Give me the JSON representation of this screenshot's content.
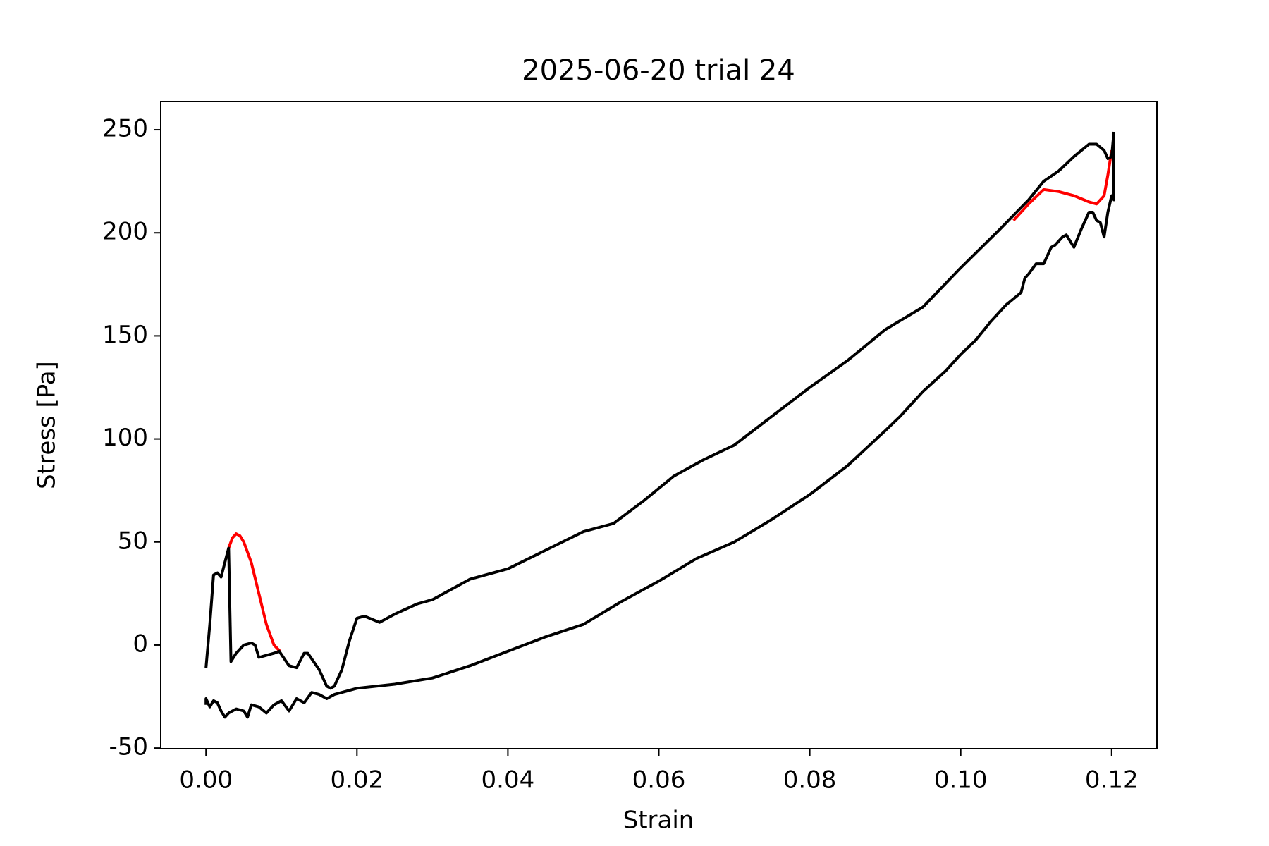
{
  "chart_data": {
    "type": "line",
    "title": "2025-06-20 trial 24",
    "x_label": "Strain",
    "y_label": "Stress [Pa]",
    "xlim": [
      -0.006,
      0.126
    ],
    "ylim": [
      -50.3,
      263.7
    ],
    "xticks": [
      {
        "value": 0,
        "label": "0.00"
      },
      0.02,
      0.04,
      0.06,
      0.08,
      {
        "value": 0.1,
        "label": "0.10"
      },
      0.12
    ],
    "yticks": [
      -50,
      0,
      50,
      100,
      150,
      200,
      250
    ],
    "series": [
      {
        "color": "#ff0000",
        "x": [
          0.003,
          0.0035,
          0.004,
          0.0045,
          0.005,
          0.006,
          0.007,
          0.008,
          0.009,
          0.0098,
          null,
          0.107,
          0.109,
          0.111,
          0.113,
          0.115,
          0.117,
          0.118,
          0.119,
          0.1195,
          0.12
        ],
        "values": [
          47,
          52,
          54,
          53,
          50,
          40,
          25,
          10,
          0,
          -3,
          null,
          206,
          214,
          221,
          220,
          218,
          215,
          214,
          218,
          228,
          240
        ]
      },
      {
        "color": "#000000",
        "x": [
          0,
          0.0005,
          0.001,
          0.0015,
          0.002,
          0.003,
          0.0033,
          0.004,
          0.005,
          0.006,
          0.0065,
          0.007,
          0.008,
          0.009,
          0.0097,
          0.011,
          0.012,
          0.013,
          0.0135,
          0.015,
          0.016,
          0.0165,
          0.017,
          0.018,
          0.019,
          0.02,
          0.021,
          0.023,
          0.025,
          0.028,
          0.03,
          0.035,
          0.04,
          0.045,
          0.05,
          0.054,
          0.058,
          0.062,
          0.066,
          0.07,
          0.075,
          0.08,
          0.085,
          0.09,
          0.095,
          0.1,
          0.105,
          0.109,
          0.111,
          0.113,
          0.115,
          0.117,
          0.118,
          0.119,
          0.1195,
          0.12,
          0.1203
        ],
        "values": [
          -11,
          10,
          34,
          35,
          33,
          47,
          -8,
          -4,
          0,
          1,
          0,
          -6,
          -5,
          -4,
          -3,
          -10,
          -11,
          -4,
          -4,
          -12,
          -20,
          -21,
          -20,
          -12,
          2,
          13,
          14,
          11,
          15,
          20,
          22,
          32,
          37,
          46,
          55,
          59,
          70,
          82,
          90,
          97,
          111,
          125,
          138,
          153,
          164,
          183,
          201,
          216,
          225,
          230,
          237,
          243,
          243,
          240,
          236,
          237,
          249
        ]
      },
      {
        "color": "#000000",
        "x": [
          0.1203,
          0.1203,
          0.12,
          0.1195,
          0.119,
          0.1185,
          0.118,
          0.1175,
          0.117,
          0.116,
          0.115,
          0.114,
          0.1135,
          0.113,
          0.1125,
          0.112,
          0.111,
          0.11,
          0.109,
          0.1085,
          0.108,
          0.106,
          0.104,
          0.102,
          0.1,
          0.098,
          0.095,
          0.092,
          0.09,
          0.085,
          0.08,
          0.075,
          0.07,
          0.065,
          0.06,
          0.055,
          0.05,
          0.045,
          0.04,
          0.035,
          0.03,
          0.025,
          0.02,
          0.017,
          0.016,
          0.015,
          0.014,
          0.013,
          0.012,
          0.011,
          0.01,
          0.009,
          0.008,
          0.007,
          0.006,
          0.0055,
          0.005,
          0.004,
          0.003,
          0.0025,
          0.002,
          0.0015,
          0.001,
          0.0005,
          0,
          0
        ],
        "values": [
          249,
          216,
          218,
          210,
          198,
          205,
          206,
          210,
          210,
          202,
          193,
          199,
          198,
          196,
          194,
          193,
          185,
          185,
          180,
          178,
          171,
          165,
          157,
          148,
          141,
          133,
          123,
          111,
          104,
          87,
          73,
          61,
          50,
          42,
          31,
          21,
          10,
          4,
          -3,
          -10,
          -16,
          -19,
          -21,
          -24,
          -26,
          -24,
          -23,
          -28,
          -26,
          -32,
          -27,
          -29,
          -33,
          -30,
          -29,
          -35,
          -32,
          -31,
          -33,
          -35,
          -32,
          -28,
          -27,
          -30,
          -26,
          -29
        ]
      }
    ]
  }
}
